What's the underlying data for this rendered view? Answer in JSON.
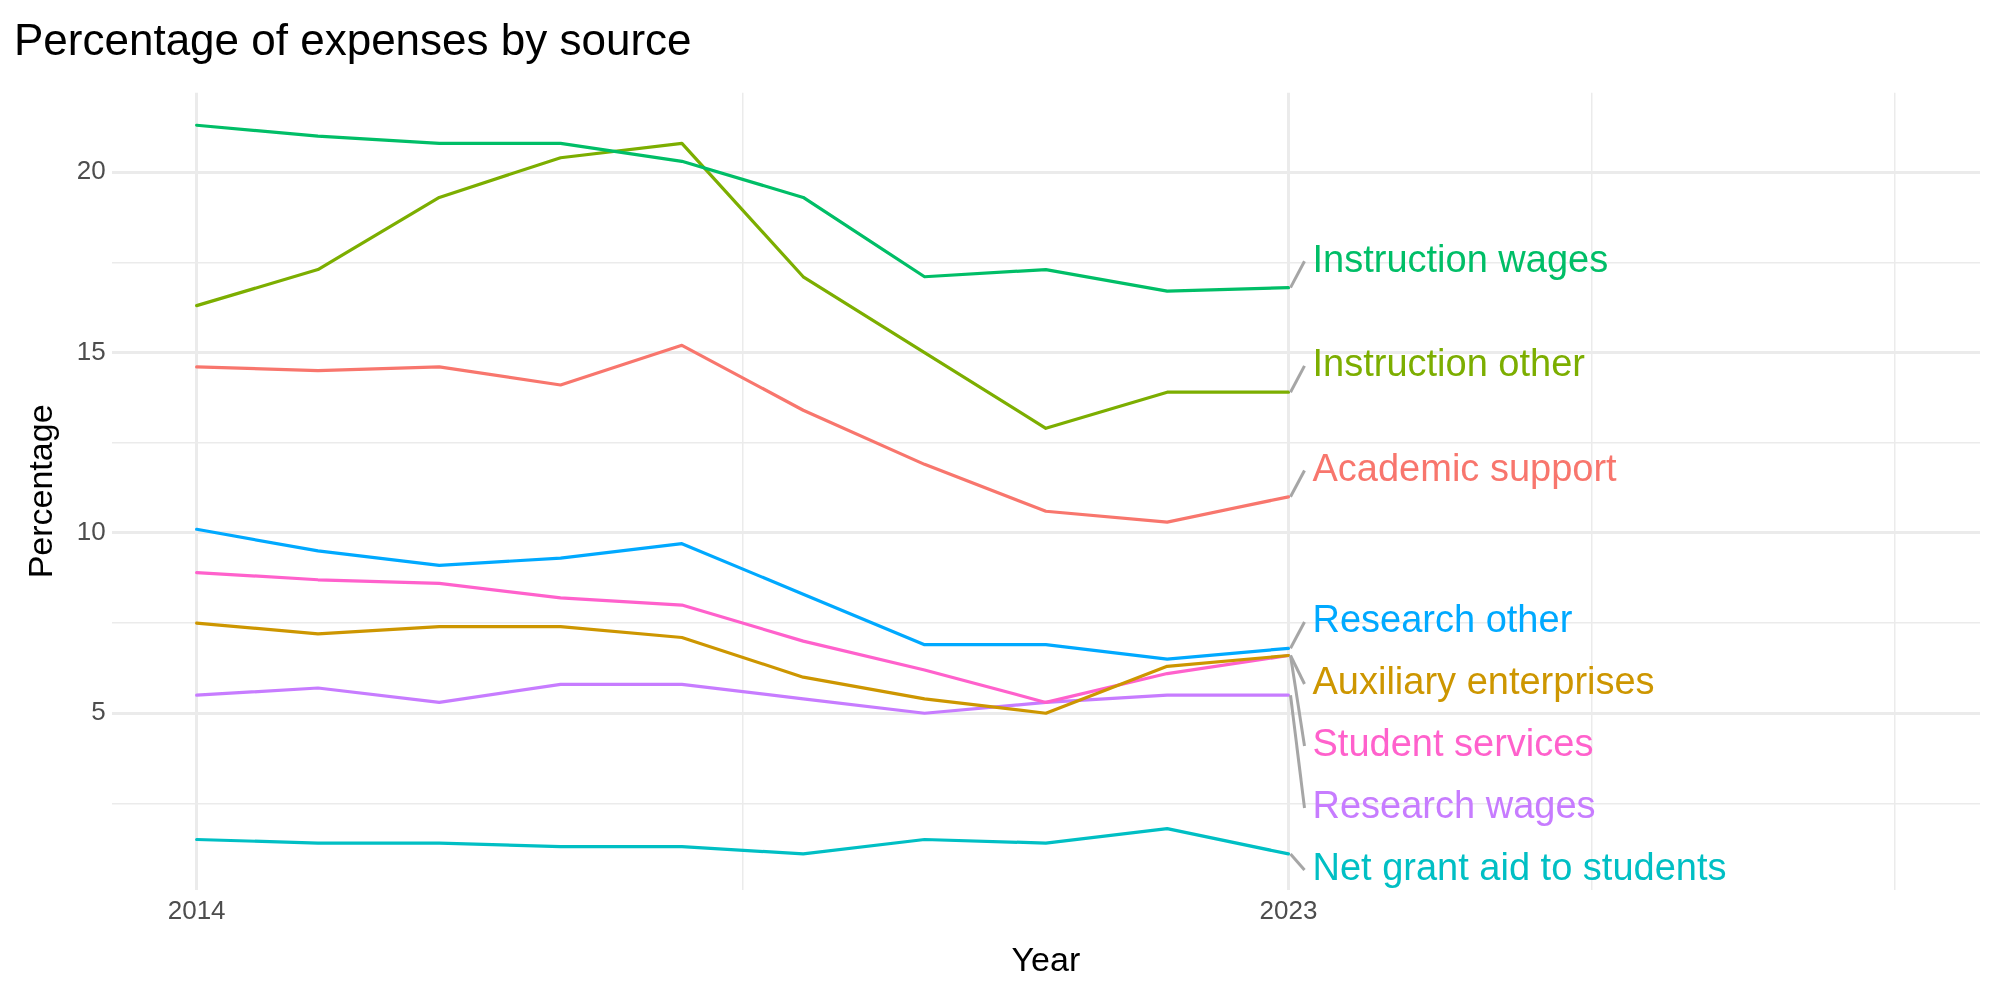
{
  "chart_data": {
    "type": "line",
    "title": "Percentage of expenses by source",
    "xlabel": "Year",
    "ylabel": "Percentage",
    "x": [
      2014,
      2015,
      2016,
      2017,
      2018,
      2019,
      2020,
      2021,
      2022,
      2023
    ],
    "series": [
      {
        "name": "Instruction wages",
        "color": "#00be67",
        "values": [
          21.3,
          21.0,
          20.8,
          20.8,
          20.3,
          19.3,
          17.1,
          17.3,
          16.7,
          16.8
        ]
      },
      {
        "name": "Instruction other",
        "color": "#7cae00",
        "values": [
          16.3,
          17.3,
          19.3,
          20.4,
          20.8,
          17.1,
          15.0,
          12.9,
          13.9,
          13.9
        ]
      },
      {
        "name": "Academic support",
        "color": "#f8766d",
        "values": [
          14.6,
          14.5,
          14.6,
          14.1,
          15.2,
          13.4,
          11.9,
          10.6,
          10.3,
          11.0
        ]
      },
      {
        "name": "Research other",
        "color": "#00a9ff",
        "values": [
          10.1,
          9.5,
          9.1,
          9.3,
          9.7,
          8.3,
          6.9,
          6.9,
          6.5,
          6.8
        ]
      },
      {
        "name": "Auxiliary enterprises",
        "color": "#cd9600",
        "values": [
          7.5,
          7.2,
          7.4,
          7.4,
          7.1,
          6.0,
          5.4,
          5.0,
          6.3,
          6.6
        ]
      },
      {
        "name": "Student services",
        "color": "#ff61cc",
        "values": [
          8.9,
          8.7,
          8.6,
          8.2,
          8.0,
          7.0,
          6.2,
          5.3,
          6.1,
          6.6
        ]
      },
      {
        "name": "Research wages",
        "color": "#c77cff",
        "values": [
          5.5,
          5.7,
          5.3,
          5.8,
          5.8,
          5.4,
          5.0,
          5.3,
          5.5,
          5.5
        ]
      },
      {
        "name": "Net grant aid to students",
        "color": "#00bfc4",
        "values": [
          1.5,
          1.4,
          1.4,
          1.3,
          1.3,
          1.1,
          1.5,
          1.4,
          1.8,
          1.1
        ]
      }
    ],
    "xlim": [
      2013.3,
      2028.7
    ],
    "xticks": [
      2014,
      {
        "value": 2018.5,
        "label": null
      },
      2023,
      {
        "value": 2025.5,
        "label": null
      },
      {
        "value": 2028,
        "label": null
      }
    ],
    "ylim": [
      0.1,
      22.2
    ],
    "yticks": [
      {
        "value": 2.5,
        "label": null
      },
      5,
      {
        "value": 7.5,
        "label": null
      },
      10,
      {
        "value": 12.5,
        "label": null
      },
      15,
      {
        "value": 17.5,
        "label": null
      },
      20
    ],
    "grid": true,
    "legend": false,
    "line_style": "solid",
    "marker": "none"
  }
}
